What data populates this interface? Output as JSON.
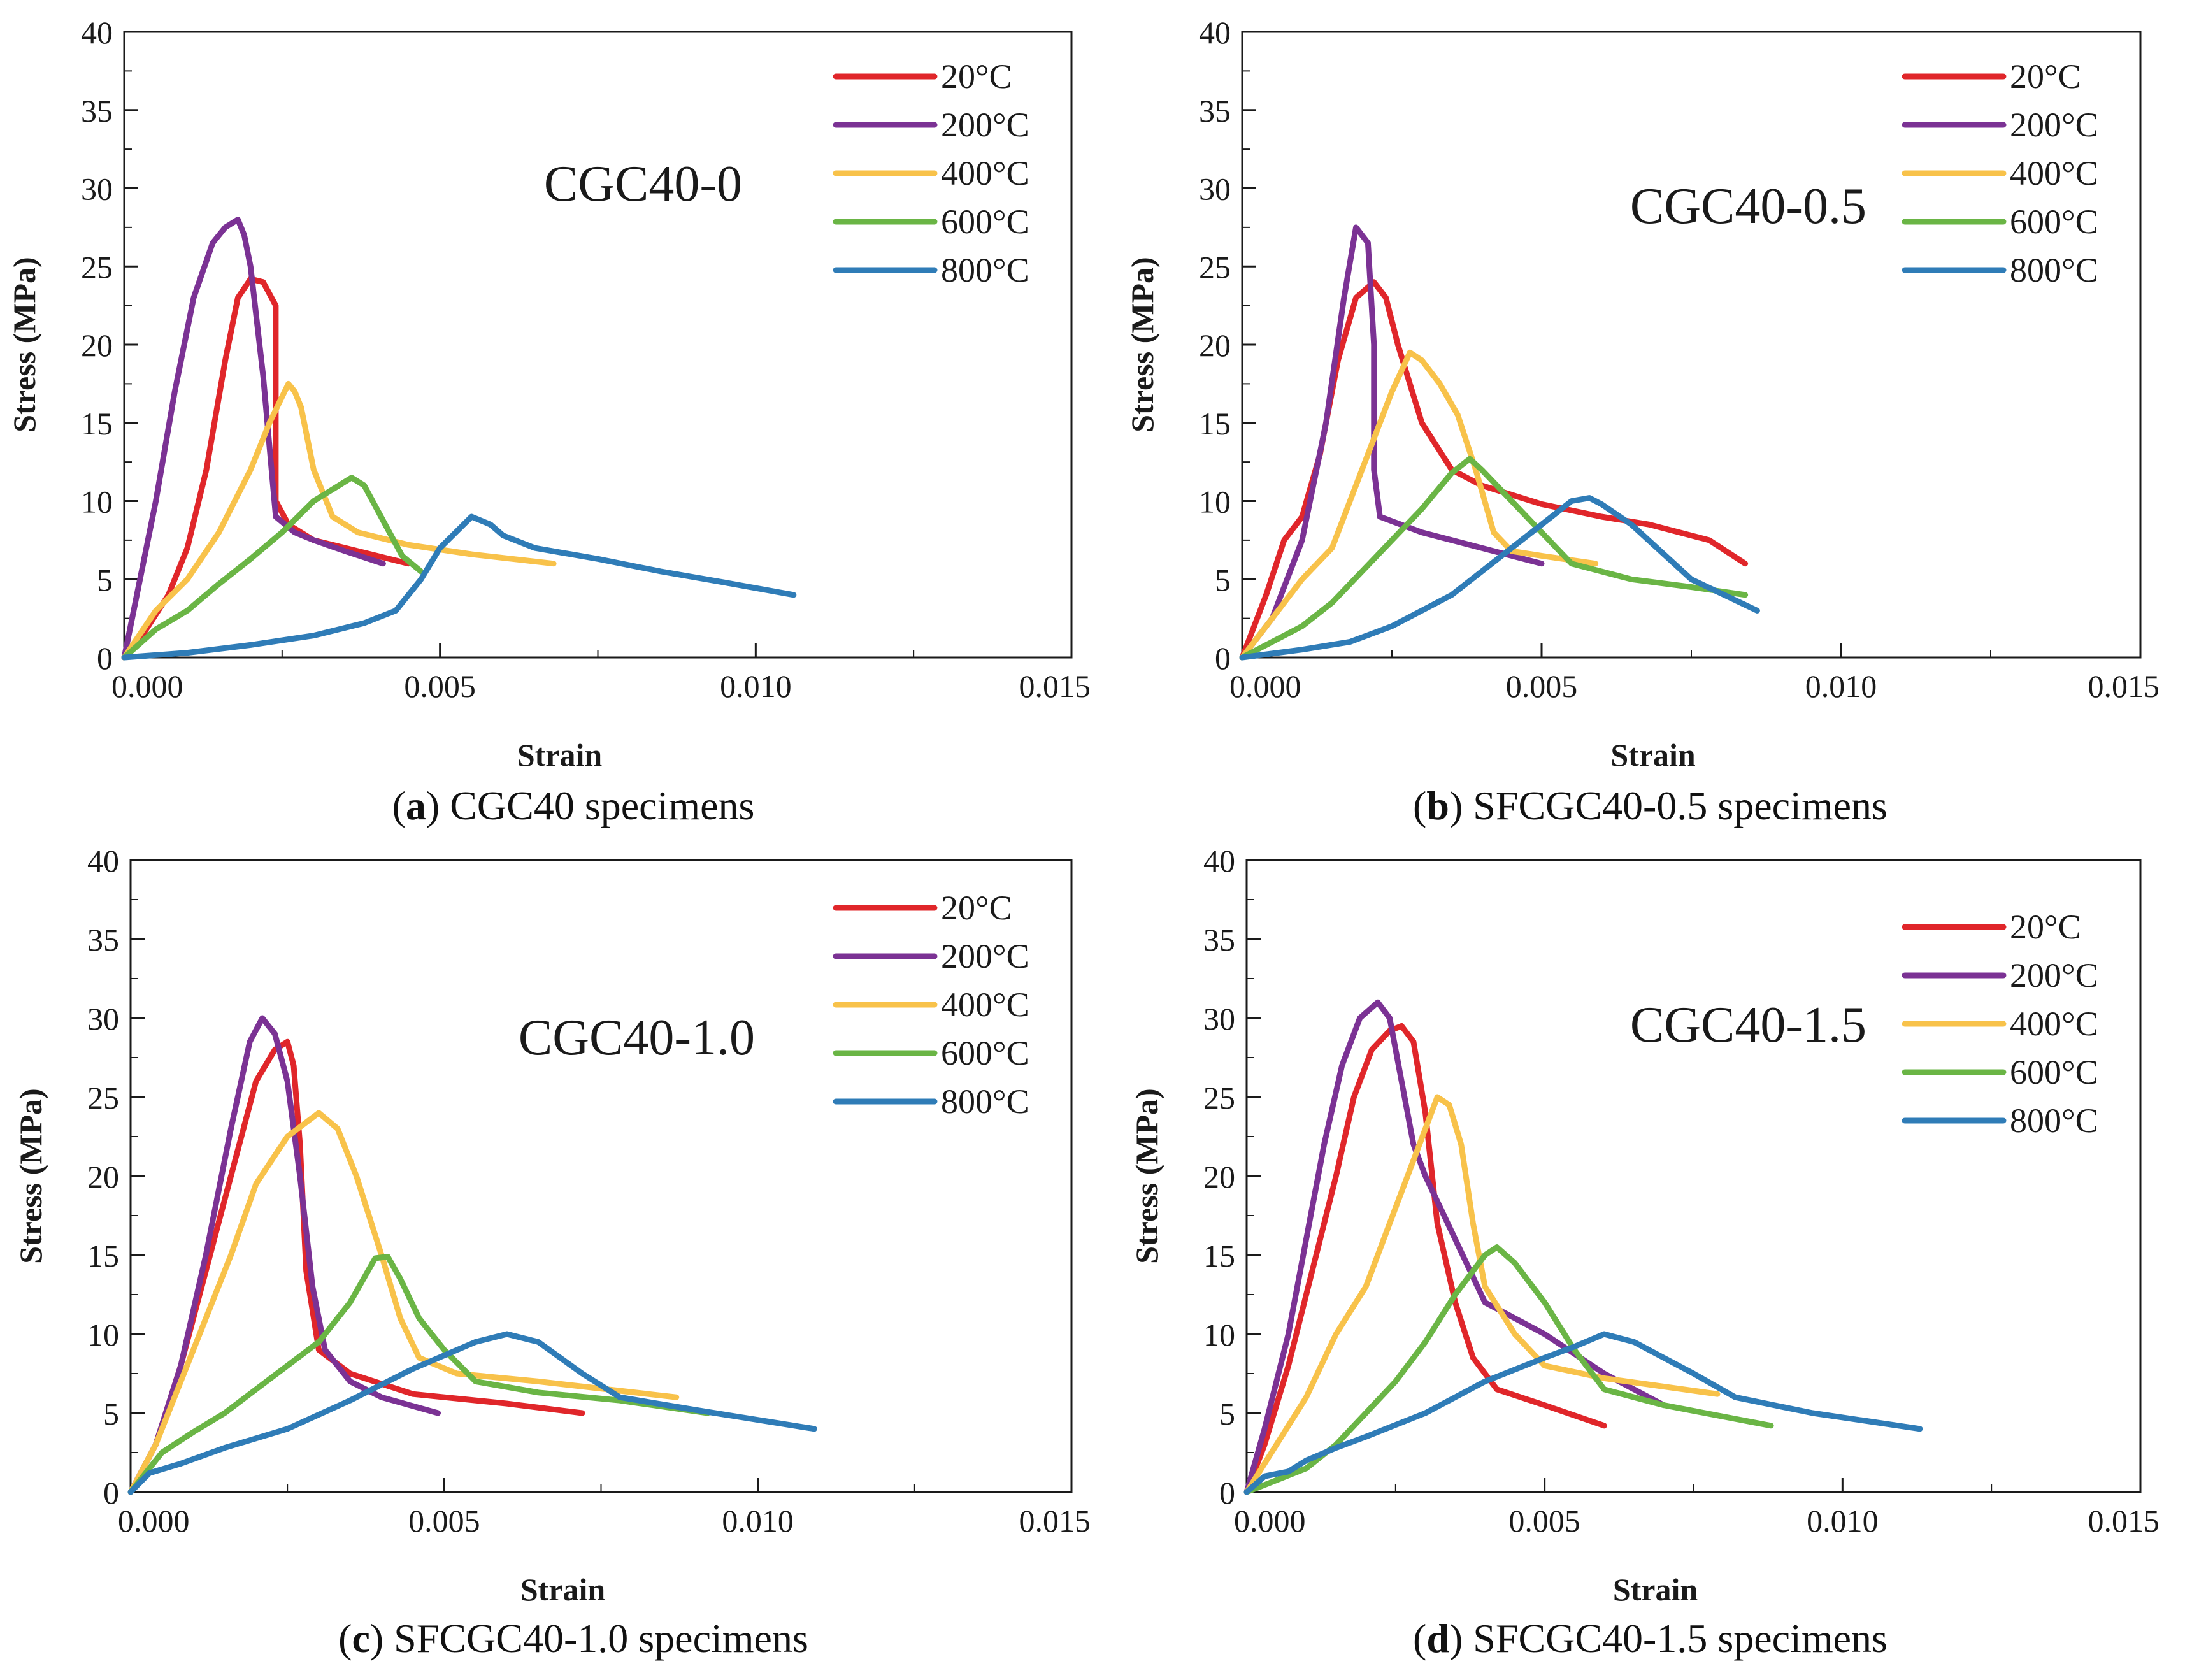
{
  "colors": {
    "20C": "#e0262a",
    "200C": "#7b3294",
    "400C": "#f8c24a",
    "600C": "#6ab545",
    "800C": "#2f7cb7",
    "axis": "#1a1a1a"
  },
  "captions": [
    {
      "letter": "a",
      "text": "CGC40 specimens"
    },
    {
      "letter": "b",
      "text": "SFCGC40-0.5 specimens"
    },
    {
      "letter": "c",
      "text": "SFCGC40-1.0 specimens"
    },
    {
      "letter": "d",
      "text": "SFCGC40-1.5 specimens"
    }
  ],
  "chart_data": [
    {
      "type": "line",
      "title": "CGC40-0",
      "xlabel": "Strain",
      "ylabel": "Stress (MPa)",
      "xlim": [
        0,
        0.015
      ],
      "ylim": [
        0,
        40
      ],
      "xticks": [
        "0.000",
        "0.005",
        "0.010",
        "0.015"
      ],
      "yticks": [
        "0",
        "5",
        "10",
        "15",
        "20",
        "25",
        "30",
        "35",
        "40"
      ],
      "legend_position": "top-right",
      "series": [
        {
          "name": "20°C",
          "color_key": "20C",
          "x": [
            0,
            0.0003,
            0.0007,
            0.001,
            0.0013,
            0.0016,
            0.0018,
            0.002,
            0.0022,
            0.0024,
            0.0024,
            0.0026,
            0.003,
            0.0035,
            0.004,
            0.0045
          ],
          "y": [
            0,
            1.5,
            4,
            7,
            12,
            19,
            23,
            24.2,
            24,
            22.5,
            10,
            8.5,
            7.5,
            7,
            6.5,
            6
          ]
        },
        {
          "name": "200°C",
          "color_key": "200C",
          "x": [
            0,
            0.0002,
            0.0005,
            0.0008,
            0.0011,
            0.0014,
            0.0016,
            0.0018,
            0.0019,
            0.002,
            0.0022,
            0.0024,
            0.0027,
            0.003,
            0.0035,
            0.0041
          ],
          "y": [
            0,
            4,
            10,
            17,
            23,
            26.5,
            27.5,
            28,
            27,
            25,
            18,
            9,
            8,
            7.5,
            6.8,
            6
          ]
        },
        {
          "name": "400°C",
          "color_key": "400C",
          "x": [
            0,
            0.0005,
            0.001,
            0.0015,
            0.002,
            0.0023,
            0.0026,
            0.0027,
            0.0028,
            0.003,
            0.0033,
            0.0037,
            0.0045,
            0.0055,
            0.0068
          ],
          "y": [
            0,
            3,
            5,
            8,
            12,
            15,
            17.5,
            17,
            16,
            12,
            9,
            8,
            7.2,
            6.6,
            6
          ]
        },
        {
          "name": "600°C",
          "color_key": "600C",
          "x": [
            0,
            0.0005,
            0.001,
            0.0015,
            0.002,
            0.0025,
            0.003,
            0.0034,
            0.0036,
            0.0038,
            0.004,
            0.0042,
            0.0044,
            0.0047
          ],
          "y": [
            0,
            1.8,
            3,
            4.7,
            6.3,
            8,
            10,
            11,
            11.5,
            11,
            9.5,
            8,
            6.5,
            5.5
          ]
        },
        {
          "name": "800°C",
          "color_key": "800C",
          "x": [
            0,
            0.001,
            0.002,
            0.003,
            0.0038,
            0.0043,
            0.0047,
            0.005,
            0.0055,
            0.0058,
            0.006,
            0.0065,
            0.0075,
            0.0085,
            0.0095,
            0.0106
          ],
          "y": [
            0,
            0.3,
            0.8,
            1.4,
            2.2,
            3,
            5,
            7,
            9,
            8.5,
            7.8,
            7,
            6.3,
            5.5,
            4.8,
            4
          ]
        }
      ]
    },
    {
      "type": "line",
      "title": "CGC40-0.5",
      "xlabel": "Strain",
      "ylabel": "Stress (MPa)",
      "xlim": [
        0,
        0.015
      ],
      "ylim": [
        0,
        40
      ],
      "xticks": [
        "0.000",
        "0.005",
        "0.010",
        "0.015"
      ],
      "yticks": [
        "0",
        "5",
        "10",
        "15",
        "20",
        "25",
        "30",
        "35",
        "40"
      ],
      "legend_position": "top-right",
      "series": [
        {
          "name": "20°C",
          "color_key": "20C",
          "x": [
            0,
            0.0004,
            0.0007,
            0.001,
            0.0013,
            0.0016,
            0.0019,
            0.0022,
            0.0024,
            0.0026,
            0.003,
            0.0035,
            0.004,
            0.005,
            0.006,
            0.0068,
            0.0078,
            0.0084
          ],
          "y": [
            0,
            4,
            7.5,
            9,
            13,
            19,
            23,
            24,
            23,
            20,
            15,
            12,
            11,
            9.8,
            9,
            8.5,
            7.5,
            6
          ]
        },
        {
          "name": "200°C",
          "color_key": "200C",
          "x": [
            0,
            0.0005,
            0.001,
            0.0014,
            0.0017,
            0.0019,
            0.002,
            0.0021,
            0.0022,
            0.0022,
            0.0023,
            0.003,
            0.004,
            0.005
          ],
          "y": [
            0,
            2.5,
            7.5,
            15,
            23,
            27.5,
            27,
            26.5,
            20,
            12,
            9,
            8,
            7,
            6
          ]
        },
        {
          "name": "400°C",
          "color_key": "400C",
          "x": [
            0,
            0.0005,
            0.001,
            0.0015,
            0.002,
            0.0025,
            0.0028,
            0.003,
            0.0033,
            0.0036,
            0.0039,
            0.0042,
            0.0045,
            0.005,
            0.0059
          ],
          "y": [
            0,
            2.5,
            5,
            7,
            12,
            17,
            19.5,
            19,
            17.5,
            15.5,
            12,
            8,
            6.8,
            6.5,
            6
          ]
        },
        {
          "name": "600°C",
          "color_key": "600C",
          "x": [
            0,
            0.0005,
            0.001,
            0.0015,
            0.002,
            0.0025,
            0.003,
            0.0035,
            0.0038,
            0.004,
            0.0045,
            0.005,
            0.0055,
            0.0065,
            0.0075,
            0.0084
          ],
          "y": [
            0,
            1,
            2,
            3.5,
            5.5,
            7.5,
            9.5,
            11.8,
            12.7,
            12,
            10,
            8,
            6,
            5,
            4.5,
            4
          ]
        },
        {
          "name": "800°C",
          "color_key": "800C",
          "x": [
            0,
            0.001,
            0.0018,
            0.0025,
            0.003,
            0.0035,
            0.004,
            0.0045,
            0.005,
            0.0055,
            0.0058,
            0.006,
            0.0065,
            0.0075,
            0.0086
          ],
          "y": [
            0,
            0.5,
            1,
            2,
            3,
            4,
            5.5,
            7,
            8.5,
            10,
            10.2,
            9.8,
            8.5,
            5,
            3
          ]
        }
      ]
    },
    {
      "type": "line",
      "title": "CGC40-1.0",
      "xlabel": "Strain",
      "ylabel": "Stress (MPa)",
      "xlim": [
        0,
        0.015
      ],
      "ylim": [
        0,
        40
      ],
      "xticks": [
        "0.000",
        "0.005",
        "0.010",
        "0.015"
      ],
      "yticks": [
        "0",
        "5",
        "10",
        "15",
        "20",
        "25",
        "30",
        "35",
        "40"
      ],
      "legend_position": "top-right",
      "series": [
        {
          "name": "20°C",
          "color_key": "20C",
          "x": [
            0,
            0.0004,
            0.0008,
            0.0012,
            0.0016,
            0.002,
            0.0023,
            0.0025,
            0.0026,
            0.0027,
            0.0028,
            0.003,
            0.0035,
            0.0045,
            0.006,
            0.0072
          ],
          "y": [
            0,
            3,
            8,
            14,
            20,
            26,
            28,
            28.5,
            27,
            22,
            14,
            9,
            7.5,
            6.2,
            5.6,
            5
          ]
        },
        {
          "name": "200°C",
          "color_key": "200C",
          "x": [
            0,
            0.0004,
            0.0008,
            0.0012,
            0.0016,
            0.0019,
            0.0021,
            0.0023,
            0.0025,
            0.0027,
            0.0029,
            0.0031,
            0.0035,
            0.004,
            0.0049
          ],
          "y": [
            0,
            3,
            8,
            15,
            23,
            28.5,
            30,
            29,
            26,
            20,
            13,
            9,
            7,
            6,
            5
          ]
        },
        {
          "name": "400°C",
          "color_key": "400C",
          "x": [
            0,
            0.0004,
            0.0008,
            0.0012,
            0.0016,
            0.002,
            0.0025,
            0.003,
            0.0033,
            0.0036,
            0.004,
            0.0043,
            0.0046,
            0.0052,
            0.0065,
            0.0087
          ],
          "y": [
            0,
            3,
            7,
            11,
            15,
            19.5,
            22.5,
            24,
            23,
            20,
            15,
            11,
            8.5,
            7.5,
            7,
            6
          ]
        },
        {
          "name": "600°C",
          "color_key": "600C",
          "x": [
            0,
            0.0005,
            0.001,
            0.0015,
            0.002,
            0.0025,
            0.003,
            0.0035,
            0.0039,
            0.0041,
            0.0043,
            0.0046,
            0.005,
            0.0055,
            0.0065,
            0.0078,
            0.0092
          ],
          "y": [
            0,
            2.5,
            3.8,
            5,
            6.5,
            8,
            9.5,
            12,
            14.8,
            14.9,
            13.5,
            11,
            9,
            7,
            6.3,
            5.8,
            5
          ]
        },
        {
          "name": "800°C",
          "color_key": "800C",
          "x": [
            0,
            0.0003,
            0.0008,
            0.0015,
            0.0025,
            0.0035,
            0.0045,
            0.0055,
            0.006,
            0.0065,
            0.0072,
            0.0078,
            0.009,
            0.0109
          ],
          "y": [
            0,
            1.2,
            1.8,
            2.8,
            4,
            5.8,
            7.8,
            9.5,
            10,
            9.5,
            7.5,
            6,
            5.2,
            4
          ]
        }
      ]
    },
    {
      "type": "line",
      "title": "CGC40-1.5",
      "xlabel": "Strain",
      "ylabel": "Stress (MPa)",
      "xlim": [
        0,
        0.015
      ],
      "ylim": [
        0,
        40
      ],
      "xticks": [
        "0.000",
        "0.005",
        "0.010",
        "0.015"
      ],
      "yticks": [
        "0",
        "5",
        "10",
        "15",
        "20",
        "25",
        "30",
        "35",
        "40"
      ],
      "legend_position": "top-right",
      "series": [
        {
          "name": "20°C",
          "color_key": "20C",
          "x": [
            0,
            0.0003,
            0.0007,
            0.0011,
            0.0015,
            0.0018,
            0.0021,
            0.0024,
            0.0026,
            0.0028,
            0.003,
            0.0032,
            0.0035,
            0.0038,
            0.0042,
            0.005,
            0.006
          ],
          "y": [
            0,
            3,
            8,
            14,
            20,
            25,
            28,
            29.2,
            29.5,
            28.5,
            24,
            17,
            12,
            8.5,
            6.5,
            5.5,
            4.2
          ]
        },
        {
          "name": "200°C",
          "color_key": "200C",
          "x": [
            0,
            0.0003,
            0.0007,
            0.001,
            0.0013,
            0.0016,
            0.0019,
            0.0022,
            0.0024,
            0.0026,
            0.0028,
            0.003,
            0.0035,
            0.004,
            0.005,
            0.006,
            0.007
          ],
          "y": [
            0,
            4,
            10,
            16,
            22,
            27,
            30,
            31,
            30,
            26,
            22,
            20,
            16,
            12,
            10,
            7.5,
            5.5
          ]
        },
        {
          "name": "400°C",
          "color_key": "400C",
          "x": [
            0,
            0.0005,
            0.001,
            0.0015,
            0.002,
            0.0025,
            0.003,
            0.0032,
            0.0034,
            0.0036,
            0.0038,
            0.004,
            0.0045,
            0.005,
            0.006,
            0.0079
          ],
          "y": [
            0,
            3,
            6,
            10,
            13,
            18,
            23,
            25,
            24.5,
            22,
            17,
            13,
            10,
            8,
            7.2,
            6.2
          ]
        },
        {
          "name": "600°C",
          "color_key": "600C",
          "x": [
            0,
            0.001,
            0.0015,
            0.002,
            0.0025,
            0.003,
            0.0035,
            0.004,
            0.0042,
            0.0045,
            0.005,
            0.0055,
            0.006,
            0.007,
            0.0088
          ],
          "y": [
            0,
            1.5,
            3,
            5,
            7,
            9.5,
            12.5,
            15,
            15.5,
            14.5,
            12,
            9,
            6.5,
            5.5,
            4.2
          ]
        },
        {
          "name": "800°C",
          "color_key": "800C",
          "x": [
            0,
            0.0003,
            0.0007,
            0.001,
            0.0015,
            0.002,
            0.003,
            0.004,
            0.005,
            0.0055,
            0.006,
            0.0065,
            0.007,
            0.0075,
            0.0082,
            0.0095,
            0.0113
          ],
          "y": [
            0,
            1,
            1.3,
            2,
            2.8,
            3.5,
            5,
            7,
            8.5,
            9.2,
            10,
            9.5,
            8.5,
            7.5,
            6,
            5,
            4
          ]
        }
      ]
    }
  ]
}
